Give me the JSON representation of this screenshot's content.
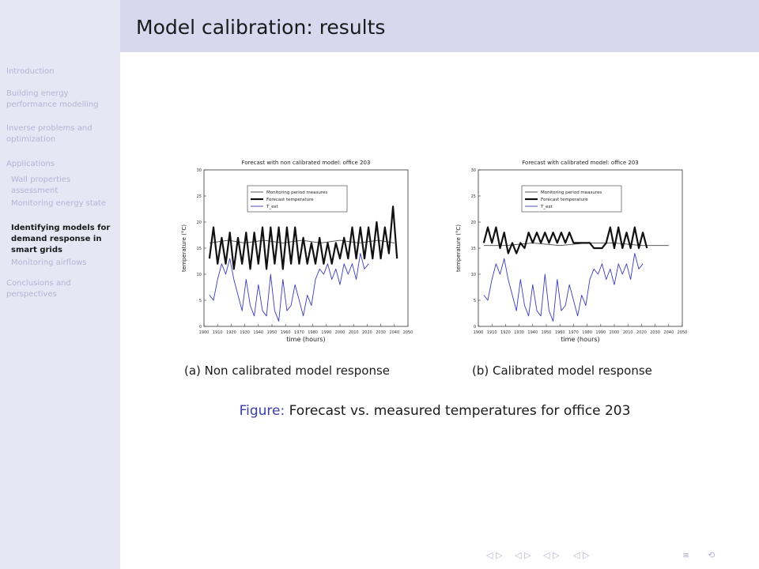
{
  "slide": {
    "title": "Model calibration: results"
  },
  "sidebar": {
    "items": [
      {
        "label": "Introduction",
        "level": 0,
        "active": false
      },
      {
        "label": "Building energy performance modelling",
        "level": 0,
        "active": false
      },
      {
        "label": "Inverse problems and optimization",
        "level": 0,
        "active": false
      },
      {
        "label": "Applications",
        "level": 0,
        "active": false
      },
      {
        "label": "Wall properties assessment",
        "level": 1,
        "active": false
      },
      {
        "label": "Monitoring energy state",
        "level": 1,
        "active": false
      },
      {
        "label": "Identifying models for demand response in smart grids",
        "level": 1,
        "active": true
      },
      {
        "label": "Monitoring airflows",
        "level": 1,
        "active": false
      },
      {
        "label": "Conclusions and perspectives",
        "level": 0,
        "active": false
      }
    ]
  },
  "figure": {
    "label": "Figure:",
    "caption": "Forecast vs. measured temperatures for office 203",
    "sub_a": "(a) Non calibrated model response",
    "sub_b": "(b) Calibrated model response"
  },
  "chart_data": [
    {
      "type": "line",
      "title": "Forecast with non calibrated model: office 203",
      "xlabel": "time (hours)",
      "ylabel": "temperature (°C)",
      "xlim": [
        1900,
        2050
      ],
      "ylim": [
        0,
        30
      ],
      "x_ticks": [
        1900,
        1910,
        1920,
        1930,
        1940,
        1950,
        1960,
        1970,
        1980,
        1990,
        2000,
        2010,
        2020,
        2030,
        2040,
        2050
      ],
      "y_ticks": [
        0,
        5,
        10,
        15,
        20,
        25,
        30
      ],
      "grid": false,
      "legend": "top-center",
      "series": [
        {
          "name": "Monitoring period measures",
          "style": "thin",
          "color": "#444444",
          "values": [
            [
              1904,
              16
            ],
            [
              1918,
              16.5
            ],
            [
              1930,
              16
            ],
            [
              1944,
              16.5
            ],
            [
              1958,
              16
            ],
            [
              1972,
              16.5
            ],
            [
              1986,
              16
            ],
            [
              2000,
              16.5
            ],
            [
              2014,
              16
            ],
            [
              2028,
              16.5
            ],
            [
              2040,
              16
            ]
          ]
        },
        {
          "name": "Forecast temperature",
          "style": "thick",
          "color": "#111111",
          "values": [
            [
              1904,
              13
            ],
            [
              1907,
              19
            ],
            [
              1910,
              12
            ],
            [
              1913,
              17
            ],
            [
              1916,
              12
            ],
            [
              1919,
              18
            ],
            [
              1922,
              11
            ],
            [
              1925,
              17
            ],
            [
              1928,
              12
            ],
            [
              1931,
              18
            ],
            [
              1934,
              11
            ],
            [
              1937,
              18
            ],
            [
              1940,
              12
            ],
            [
              1943,
              19
            ],
            [
              1946,
              11
            ],
            [
              1949,
              19
            ],
            [
              1952,
              12
            ],
            [
              1955,
              19
            ],
            [
              1958,
              11
            ],
            [
              1961,
              19
            ],
            [
              1964,
              12
            ],
            [
              1967,
              19
            ],
            [
              1970,
              12
            ],
            [
              1973,
              17
            ],
            [
              1976,
              12
            ],
            [
              1979,
              16
            ],
            [
              1982,
              12
            ],
            [
              1985,
              17
            ],
            [
              1988,
              12
            ],
            [
              1991,
              16
            ],
            [
              1994,
              12
            ],
            [
              1997,
              16
            ],
            [
              2000,
              13
            ],
            [
              2003,
              17
            ],
            [
              2006,
              13
            ],
            [
              2009,
              19
            ],
            [
              2012,
              13
            ],
            [
              2015,
              19
            ],
            [
              2018,
              13
            ],
            [
              2021,
              19
            ],
            [
              2024,
              13
            ],
            [
              2027,
              20
            ],
            [
              2030,
              13
            ],
            [
              2033,
              19
            ],
            [
              2036,
              14
            ],
            [
              2039,
              23
            ],
            [
              2042,
              13
            ]
          ]
        },
        {
          "name": "T_ext",
          "style": "thin",
          "color": "#3b3bb8",
          "values": [
            [
              1904,
              6
            ],
            [
              1907,
              5
            ],
            [
              1910,
              9
            ],
            [
              1913,
              12
            ],
            [
              1916,
              10
            ],
            [
              1919,
              13
            ],
            [
              1922,
              9
            ],
            [
              1925,
              6
            ],
            [
              1928,
              3
            ],
            [
              1931,
              9
            ],
            [
              1934,
              4
            ],
            [
              1937,
              2
            ],
            [
              1940,
              8
            ],
            [
              1943,
              3
            ],
            [
              1946,
              2
            ],
            [
              1949,
              10
            ],
            [
              1952,
              3
            ],
            [
              1955,
              1
            ],
            [
              1958,
              9
            ],
            [
              1961,
              3
            ],
            [
              1964,
              4
            ],
            [
              1967,
              8
            ],
            [
              1970,
              5
            ],
            [
              1973,
              2
            ],
            [
              1976,
              6
            ],
            [
              1979,
              4
            ],
            [
              1982,
              9
            ],
            [
              1985,
              11
            ],
            [
              1988,
              10
            ],
            [
              1991,
              12
            ],
            [
              1994,
              9
            ],
            [
              1997,
              11
            ],
            [
              2000,
              8
            ],
            [
              2003,
              12
            ],
            [
              2006,
              10
            ],
            [
              2009,
              12
            ],
            [
              2012,
              9
            ],
            [
              2015,
              14
            ],
            [
              2018,
              11
            ],
            [
              2021,
              12
            ]
          ]
        }
      ]
    },
    {
      "type": "line",
      "title": "Forecast with calibrated model: office 203",
      "xlabel": "time (hours)",
      "ylabel": "temperature (°C)",
      "xlim": [
        1900,
        2050
      ],
      "ylim": [
        0,
        30
      ],
      "x_ticks": [
        1900,
        1910,
        1920,
        1930,
        1940,
        1950,
        1960,
        1970,
        1980,
        1990,
        2000,
        2010,
        2020,
        2030,
        2040,
        2050
      ],
      "y_ticks": [
        0,
        5,
        10,
        15,
        20,
        25,
        30
      ],
      "grid": false,
      "legend": "top-center",
      "series": [
        {
          "name": "Monitoring period measures",
          "style": "thin",
          "color": "#444444",
          "values": [
            [
              1904,
              15.5
            ],
            [
              1920,
              15.5
            ],
            [
              1940,
              16
            ],
            [
              1960,
              15.5
            ],
            [
              1980,
              16
            ],
            [
              2000,
              16
            ],
            [
              2020,
              15.5
            ],
            [
              2040,
              15.5
            ]
          ]
        },
        {
          "name": "Forecast temperature",
          "style": "thick",
          "color": "#111111",
          "values": [
            [
              1904,
              16
            ],
            [
              1907,
              19
            ],
            [
              1910,
              16
            ],
            [
              1913,
              19
            ],
            [
              1916,
              15
            ],
            [
              1919,
              18
            ],
            [
              1922,
              14
            ],
            [
              1925,
              16
            ],
            [
              1928,
              14
            ],
            [
              1931,
              16
            ],
            [
              1934,
              15
            ],
            [
              1937,
              18
            ],
            [
              1940,
              16
            ],
            [
              1943,
              18
            ],
            [
              1946,
              16
            ],
            [
              1949,
              18
            ],
            [
              1952,
              16
            ],
            [
              1955,
              18
            ],
            [
              1958,
              16
            ],
            [
              1961,
              18
            ],
            [
              1964,
              16
            ],
            [
              1967,
              18
            ],
            [
              1970,
              16
            ],
            [
              1973,
              16
            ],
            [
              1976,
              16
            ],
            [
              1979,
              16
            ],
            [
              1982,
              16
            ],
            [
              1985,
              15
            ],
            [
              1988,
              15
            ],
            [
              1991,
              15
            ],
            [
              1994,
              16
            ],
            [
              1997,
              19
            ],
            [
              2000,
              15
            ],
            [
              2003,
              19
            ],
            [
              2006,
              15
            ],
            [
              2009,
              18
            ],
            [
              2012,
              15
            ],
            [
              2015,
              19
            ],
            [
              2018,
              15
            ],
            [
              2021,
              18
            ],
            [
              2024,
              15
            ]
          ]
        },
        {
          "name": "T_ext",
          "style": "thin",
          "color": "#3b3bb8",
          "values": [
            [
              1904,
              6
            ],
            [
              1907,
              5
            ],
            [
              1910,
              9
            ],
            [
              1913,
              12
            ],
            [
              1916,
              10
            ],
            [
              1919,
              13
            ],
            [
              1922,
              9
            ],
            [
              1925,
              6
            ],
            [
              1928,
              3
            ],
            [
              1931,
              9
            ],
            [
              1934,
              4
            ],
            [
              1937,
              2
            ],
            [
              1940,
              8
            ],
            [
              1943,
              3
            ],
            [
              1946,
              2
            ],
            [
              1949,
              10
            ],
            [
              1952,
              3
            ],
            [
              1955,
              1
            ],
            [
              1958,
              9
            ],
            [
              1961,
              3
            ],
            [
              1964,
              4
            ],
            [
              1967,
              8
            ],
            [
              1970,
              5
            ],
            [
              1973,
              2
            ],
            [
              1976,
              6
            ],
            [
              1979,
              4
            ],
            [
              1982,
              9
            ],
            [
              1985,
              11
            ],
            [
              1988,
              10
            ],
            [
              1991,
              12
            ],
            [
              1994,
              9
            ],
            [
              1997,
              11
            ],
            [
              2000,
              8
            ],
            [
              2003,
              12
            ],
            [
              2006,
              10
            ],
            [
              2009,
              12
            ],
            [
              2012,
              9
            ],
            [
              2015,
              14
            ],
            [
              2018,
              11
            ],
            [
              2021,
              12
            ]
          ]
        }
      ]
    }
  ],
  "navigation": {
    "icons": [
      "slide-prev-icon",
      "slide-next-icon",
      "frame-prev-icon",
      "frame-next-icon",
      "section-prev-icon",
      "section-next-icon",
      "subsection-prev-icon",
      "subsection-next-icon",
      "align-icon",
      "zoom-icon"
    ],
    "glyphs": [
      "◁",
      "▷",
      "◁",
      "▷",
      "◁",
      "▷",
      "◁",
      "▷",
      "≡",
      "⟲"
    ]
  }
}
